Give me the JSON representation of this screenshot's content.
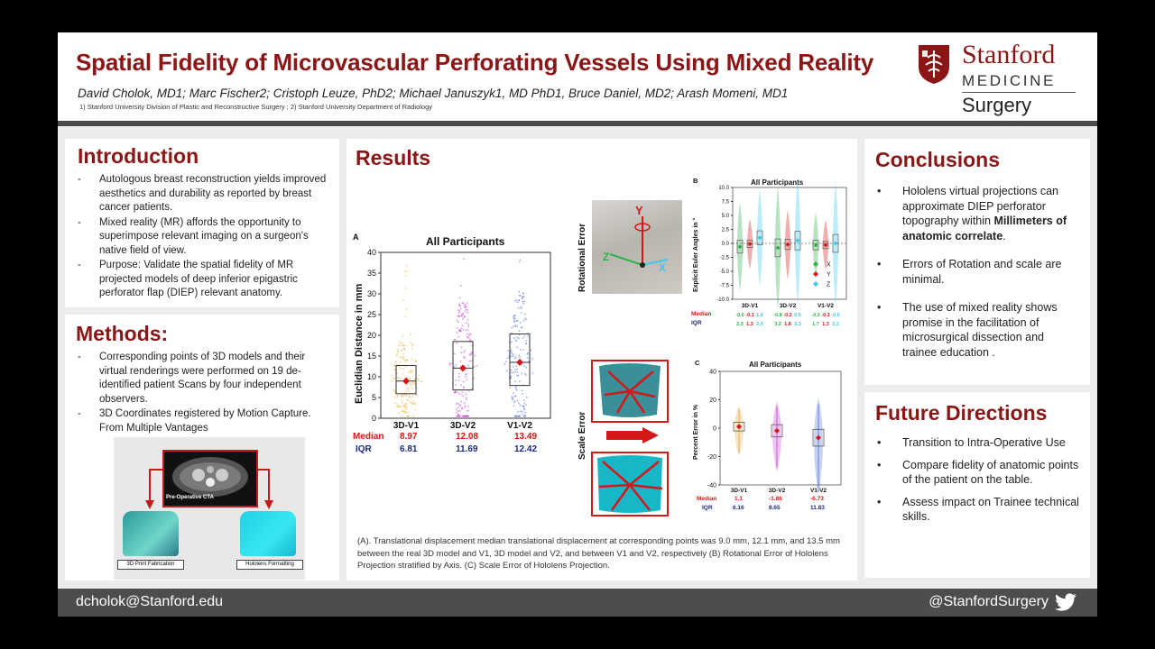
{
  "header": {
    "title": "Spatial Fidelity of Microvascular Perforating Vessels Using Mixed Reality",
    "authors": "David Cholok, MD1; Marc Fischer2; Cristoph Leuze, PhD2; Michael Januszyk1, MD PhD1,  Bruce Daniel, MD2; Arash Momeni, MD1",
    "affiliations": "1) Stanford University Division of Plastic and Reconstructive Surgery ; 2) Stanford University Department of Radiology",
    "logo": {
      "line1": "Stanford",
      "line2": "MEDICINE",
      "line3": "Surgery",
      "icon": "stanford-tree-shield-icon"
    }
  },
  "introduction": {
    "title": "Introduction",
    "items": [
      "Autologous breast reconstruction yields improved aesthetics and durability as reported by breast cancer patients.",
      "Mixed reality (MR) affords the opportunity to superimpose relevant imaging on a surgeon's native field of view.",
      "Purpose: Validate the spatial fidelity of MR projected models of deep inferior epigastric perforator flap (DIEP) relevant anatomy."
    ]
  },
  "methods": {
    "title": "Methods:",
    "items": [
      "Corresponding points of 3D models and their virtual renderings were performed on 19 de-identified patient Scans by four independent observers.",
      "3D Coordinates registered by Motion Capture. From Multiple Vantages"
    ],
    "figure": {
      "ct_label": "Pre-Operative CTA",
      "left_label": "3D Print Fabrication",
      "right_label": "Hololens Formatting"
    }
  },
  "results": {
    "title": "Results",
    "caption": "(A). Translational displacement  median translational displacement at corresponding points was 9.0 mm, 12.1 mm, and 13.5 mm between the real 3D model and V1, 3D model and V2, and between V1 and V2, respectively (B) Rotational Error of Hololens Projection stratified by Axis. (C) Scale Error of Hololens Projection.",
    "photo_labels": {
      "rotational": "Rotational Error",
      "scale": "Scale Error",
      "axis_y": "Y",
      "axis_z": "Z",
      "axis_x": "X"
    },
    "stat_labels": {
      "median": "Median",
      "iqr": "IQR"
    }
  },
  "chart_data": [
    {
      "panel": "A",
      "type": "box",
      "title": "All Participants",
      "ylabel": "Euclidian Distance in mm",
      "xlabel": "",
      "ylim": [
        0,
        40
      ],
      "yticks": [
        0,
        5,
        10,
        15,
        20,
        25,
        30,
        35,
        40
      ],
      "categories": [
        "3D-V1",
        "3D-V2",
        "V1-V2"
      ],
      "colors": [
        "#e9b23a",
        "#c33bd0",
        "#4a6ddb"
      ],
      "median": [
        8.97,
        12.08,
        13.49
      ],
      "iqr": [
        6.81,
        11.69,
        12.42
      ],
      "median_labels": [
        "8.97",
        "12.08",
        "13.49"
      ],
      "iqr_labels": [
        "6.81",
        "11.69",
        "12.42"
      ]
    },
    {
      "panel": "B",
      "type": "box",
      "title": "All Participants",
      "ylabel": "Explicit Euler Angles in °",
      "xlabel": "",
      "ylim": [
        -10,
        10
      ],
      "yticks": [
        -10.0,
        -7.5,
        -5.0,
        -2.5,
        0.0,
        2.5,
        5.0,
        7.5,
        10.0
      ],
      "ytick_labels": [
        "-10.0",
        "-7.5",
        "-5.0",
        "-2.5",
        "0.0",
        "2.5",
        "5.0",
        "7.5",
        "10.0"
      ],
      "categories": [
        "3D-V1",
        "3D-V2",
        "V1-V2"
      ],
      "legend": [
        "X",
        "Y",
        "Z"
      ],
      "legend_colors": [
        "#2db34a",
        "#d41717",
        "#3cc8e8"
      ],
      "legend_position": "bottom-right",
      "median": [
        [
          -0.6,
          -0.1,
          1.0
        ],
        [
          -0.8,
          -0.2,
          0.5
        ],
        [
          -0.3,
          -0.3,
          -0.0
        ]
      ],
      "iqr": [
        [
          2.3,
          1.3,
          2.5
        ],
        [
          3.2,
          1.8,
          3.3
        ],
        [
          1.7,
          1.3,
          3.2
        ]
      ],
      "median_labels": [
        "-0.6",
        "-0.1",
        "1.0",
        "-0.8",
        "-0.2",
        "0.5",
        "-0.3",
        "-0.3",
        "-0.0"
      ],
      "iqr_labels": [
        "2.3",
        "1.3",
        "2.5",
        "3.2",
        "1.8",
        "3.3",
        "1.7",
        "1.3",
        "3.2"
      ]
    },
    {
      "panel": "C",
      "type": "box",
      "title": "All Participants",
      "ylabel": "Percent Error in %",
      "xlabel": "",
      "ylim": [
        -40,
        40
      ],
      "yticks": [
        -40,
        -20,
        0,
        20,
        40
      ],
      "categories": [
        "3D-V1",
        "3D-V2",
        "V1-V2"
      ],
      "colors": [
        "#e9a23a",
        "#c33bd0",
        "#4a6ddb"
      ],
      "median": [
        1.1,
        -1.86,
        -6.73
      ],
      "iqr": [
        6.16,
        8.65,
        11.83
      ],
      "median_labels": [
        "1.1",
        "-1.86",
        "-6.73"
      ],
      "iqr_labels": [
        "6.16",
        "8.65",
        "11.83"
      ]
    }
  ],
  "conclusions": {
    "title": "Conclusions",
    "items": [
      {
        "text": "Hololens virtual projections can approximate DIEP perforator topography within ",
        "bold": "Millimeters of anatomic correlate",
        "tail": "."
      },
      {
        "text": "Errors of Rotation and scale are minimal.",
        "bold": "",
        "tail": ""
      },
      {
        "text": " The use of mixed reality shows promise in the facilitation of microsurgical dissection and trainee education .",
        "bold": "",
        "tail": ""
      }
    ]
  },
  "future": {
    "title": "Future Directions",
    "items": [
      "Transition to Intra-Operative Use",
      "Compare fidelity of anatomic points of the patient on the table.",
      "Assess impact on Trainee technical skills."
    ]
  },
  "footer": {
    "email": "dcholok@Stanford.edu",
    "handle": "@StanfordSurgery",
    "icon": "twitter-bird-icon"
  }
}
